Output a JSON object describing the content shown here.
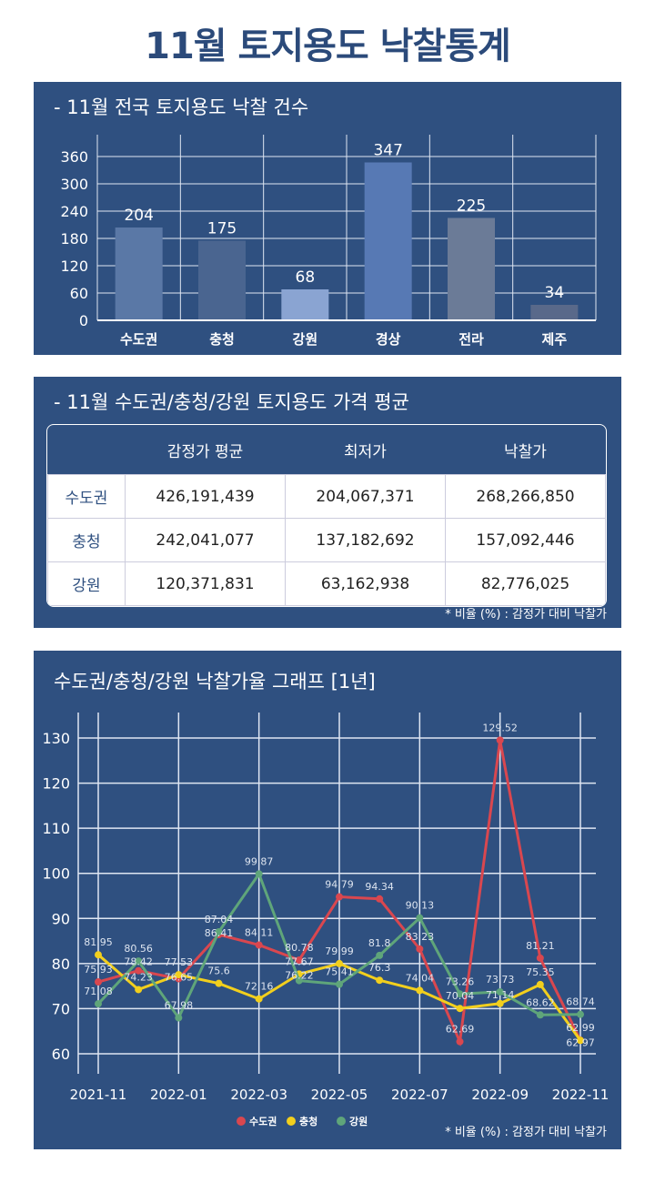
{
  "title": "11월 토지용도 낙찰통계",
  "chart_data": [
    {
      "type": "bar",
      "title": "- 11월 전국 토지용도 낙찰 건수",
      "categories": [
        "수도권",
        "충청",
        "강원",
        "경상",
        "전라",
        "제주"
      ],
      "values": [
        204,
        175,
        68,
        347,
        225,
        34
      ],
      "ylim": [
        0,
        360
      ],
      "yticks": [
        0,
        60,
        120,
        180,
        240,
        300,
        360
      ],
      "colors": [
        "#5a78a6",
        "#4a6590",
        "#8aa4d2",
        "#5779b4",
        "#6b7b97",
        "#59698a"
      ],
      "grid": true
    },
    {
      "type": "line",
      "title": "수도권/충청/강원 낙찰가율 그래프 [1년]",
      "x": [
        "2021-11",
        "2021-12",
        "2022-01",
        "2022-02",
        "2022-03",
        "2022-04",
        "2022-05",
        "2022-06",
        "2022-07",
        "2022-08",
        "2022-09",
        "2022-10",
        "2022-11"
      ],
      "xticks": [
        "2021-11",
        "2022-01",
        "2022-03",
        "2022-05",
        "2022-07",
        "2022-09",
        "2022-11"
      ],
      "ylim": [
        55,
        135
      ],
      "yticks": [
        60,
        70,
        80,
        90,
        100,
        110,
        120,
        130
      ],
      "legend": "bottom-center",
      "grid": true,
      "series": [
        {
          "name": "수도권",
          "color": "#d9474f",
          "values": [
            75.93,
            78.42,
            76.65,
            86.41,
            84.11,
            80.78,
            94.79,
            94.34,
            83.23,
            62.69,
            129.52,
            81.21,
            62.99
          ]
        },
        {
          "name": "충청",
          "color": "#f2cf1d",
          "values": [
            81.95,
            74.23,
            77.53,
            75.6,
            72.16,
            77.67,
            79.99,
            76.3,
            74.04,
            70.04,
            71.14,
            75.35,
            62.97
          ]
        },
        {
          "name": "강원",
          "color": "#5fa57a",
          "values": [
            71.08,
            80.56,
            67.98,
            87.04,
            99.87,
            76.22,
            75.41,
            81.8,
            90.13,
            73.26,
            73.73,
            68.62,
            68.74
          ]
        }
      ]
    }
  ],
  "table": {
    "title": "- 11월 수도권/충청/강원 토지용도 가격 평균",
    "headers": [
      "",
      "감정가 평균",
      "최저가",
      "낙찰가"
    ],
    "rows": [
      [
        "수도권",
        "426,191,439",
        "204,067,371",
        "268,266,850"
      ],
      [
        "충청",
        "242,041,077",
        "137,182,692",
        "157,092,446"
      ],
      [
        "강원",
        "120,371,831",
        "63,162,938",
        "82,776,025"
      ]
    ],
    "note": "* 비율 (%) : 감정가 대비 낙찰가"
  },
  "line_note": "* 비율 (%) : 감정가 대비 낙찰가"
}
